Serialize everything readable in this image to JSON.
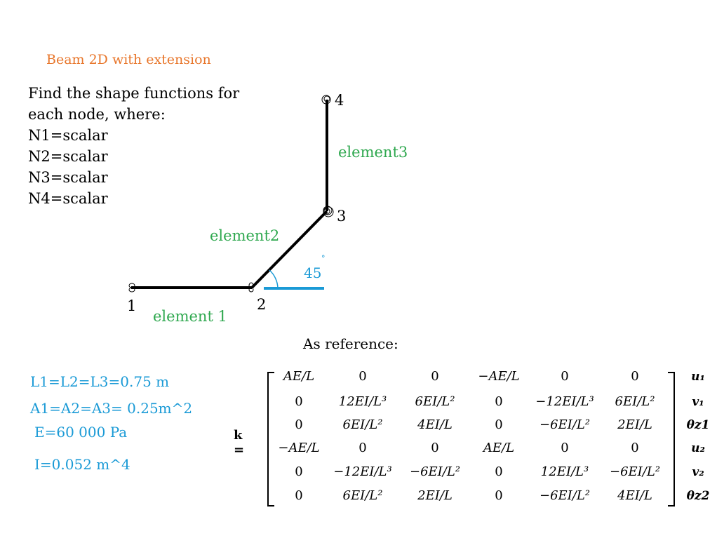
{
  "title": "Beam 2D with extension",
  "prompt": [
    "Find the shape functions for",
    "each node, where:",
    "N1=scalar",
    "N2=scalar",
    "N3=scalar",
    "N4=scalar"
  ],
  "diagram": {
    "nodes": [
      "1",
      "2",
      "3",
      "4"
    ],
    "elements": [
      "element 1",
      "element2",
      "element3"
    ],
    "angle": "45",
    "angle_degree_mark": "°"
  },
  "properties": [
    "L1=L2=L3=0.75 m",
    "A1=A2=A3= 0.25m^2",
    "E=60 000 Pa",
    "I=0.052 m^4"
  ],
  "reference_label": "As reference:",
  "matrix": {
    "symbol": "k =",
    "rows": [
      [
        "AE/L",
        "0",
        "0",
        "−AE/L",
        "0",
        "0"
      ],
      [
        "0",
        "12EI/L³",
        "6EI/L²",
        "0",
        "−12EI/L³",
        "6EI/L²"
      ],
      [
        "0",
        "6EI/L²",
        "4EI/L",
        "0",
        "−6EI/L²",
        "2EI/L"
      ],
      [
        "−AE/L",
        "0",
        "0",
        "AE/L",
        "0",
        "0"
      ],
      [
        "0",
        "−12EI/L³",
        "−6EI/L²",
        "0",
        "12EI/L³",
        "−6EI/L²"
      ],
      [
        "0",
        "6EI/L²",
        "2EI/L",
        "0",
        "−6EI/L²",
        "4EI/L"
      ]
    ],
    "dofs": [
      "u₁",
      "v₁",
      "θz1",
      "u₂",
      "v₂",
      "θz2"
    ]
  },
  "colors": {
    "title": "#e8762b",
    "element_label": "#2fa84f",
    "properties": "#1a9ad6",
    "beam": "#000000"
  }
}
